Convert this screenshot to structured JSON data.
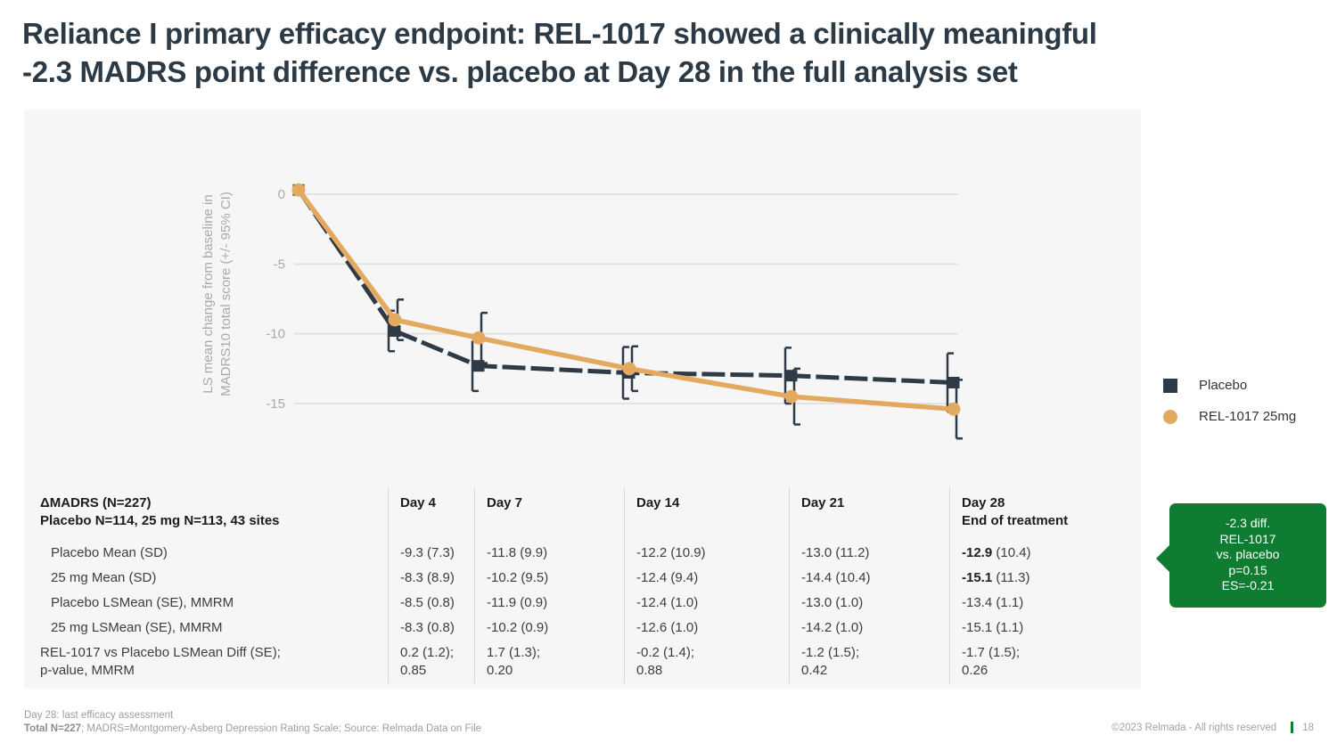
{
  "title": {
    "line1": "Reliance I primary efficacy endpoint: REL-1017 showed a clinically meaningful",
    "line2": "-2.3 MADRS point difference vs. placebo at Day 28 in the full analysis set"
  },
  "colors": {
    "placebo_navy": "#2e3b47",
    "rel1017_orange": "#e3a95f",
    "accent_green": "#0e7d31",
    "panel_gray": "#f6f6f7"
  },
  "chart_data": {
    "type": "line",
    "ylabel_lines": [
      "LS mean change from baseline in",
      "MADRS10 total score (+/- 95% CI)"
    ],
    "yticks": [
      0,
      -5,
      -10,
      -15
    ],
    "ylim": [
      -18,
      2
    ],
    "grid": "horizontal",
    "legend_position": "right-outside",
    "x_days": [
      0,
      4,
      7,
      14,
      21,
      28
    ],
    "series": [
      {
        "name": "Placebo",
        "color": "#2e3b47",
        "marker": "square",
        "dashed": true,
        "values": [
          0.3,
          -9.8,
          -12.3,
          -12.8,
          -13.0,
          -13.5
        ],
        "ci95_halfwidth": [
          0,
          1.45,
          1.8,
          1.85,
          2.0,
          2.1
        ]
      },
      {
        "name": "REL-1017 25mg",
        "color": "#e3a95f",
        "marker": "circle",
        "dashed": false,
        "values": [
          0.3,
          -9.0,
          -10.3,
          -12.5,
          -14.5,
          -15.4
        ],
        "ci95_halfwidth": [
          0,
          1.45,
          1.8,
          1.6,
          2.0,
          2.1
        ]
      }
    ]
  },
  "table": {
    "header": {
      "line1": "ΔMADRS (N=227)",
      "line2": "Placebo N=114, 25 mg N=113, 43 sites"
    },
    "columns": [
      "Day 4",
      "Day 7",
      "Day 14",
      "Day 21",
      "Day 28"
    ],
    "day28_subtitle": "End of treatment",
    "rows": [
      {
        "label": "Placebo Mean (SD)",
        "indent": true,
        "cells": [
          {
            "text": "-9.3 (7.3)"
          },
          {
            "text": "-11.8 (9.9)"
          },
          {
            "text": "-12.2 (10.9)"
          },
          {
            "text": "-13.0 (11.2)"
          },
          {
            "bold": "-12.9",
            "text": " (10.4)"
          }
        ]
      },
      {
        "label": "25 mg  Mean (SD)",
        "indent": true,
        "cells": [
          {
            "text": "-8.3 (8.9)"
          },
          {
            "text": "-10.2 (9.5)"
          },
          {
            "text": "-12.4 (9.4)"
          },
          {
            "text": "-14.4 (10.4)"
          },
          {
            "bold": "-15.1",
            "text": " (11.3)"
          }
        ]
      },
      {
        "label": "Placebo LSMean (SE), MMRM",
        "indent": true,
        "cells": [
          {
            "text": "-8.5 (0.8)"
          },
          {
            "text": "-11.9 (0.9)"
          },
          {
            "text": "-12.4 (1.0)"
          },
          {
            "text": "-13.0 (1.0)"
          },
          {
            "text": "-13.4 (1.1)"
          }
        ]
      },
      {
        "label": "25 mg LSMean (SE), MMRM",
        "indent": true,
        "cells": [
          {
            "text": "-8.3 (0.8)"
          },
          {
            "text": "-10.2 (0.9)"
          },
          {
            "text": "-12.6 (1.0)"
          },
          {
            "text": "-14.2 (1.0)"
          },
          {
            "text": "-15.1 (1.1)"
          }
        ]
      },
      {
        "label": "REL-1017 vs Placebo LSMean Diff (SE);",
        "label2": "p-value, MMRM",
        "indent": false,
        "cells": [
          {
            "text": "0.2 (1.2);",
            "text2": "0.85"
          },
          {
            "text": "1.7 (1.3);",
            "text2": "0.20"
          },
          {
            "text": "-0.2 (1.4);",
            "text2": "0.88"
          },
          {
            "text": "-1.2 (1.5);",
            "text2": "0.42"
          },
          {
            "text": "-1.7 (1.5);",
            "text2": "0.26"
          }
        ]
      }
    ]
  },
  "callout": {
    "lines": [
      "-2.3 diff.",
      "REL-1017",
      "vs. placebo",
      "p=0.15",
      "ES=-0.21"
    ]
  },
  "footnotes": {
    "line1": "Day 28: last efficacy assessment",
    "line2_bold": "Total N=227",
    "line2_rest": "; MADRS=Montgomery-Asberg Depression Rating Scale; Source: Relmada Data on File"
  },
  "footer": {
    "copyright": "©2023 Relmada - All rights reserved",
    "page": "18"
  }
}
